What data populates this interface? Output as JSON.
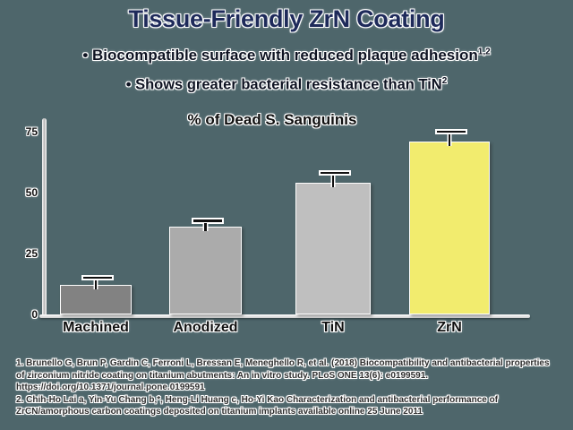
{
  "background_color": "#4e666b",
  "title": {
    "text": "Tissue-Friendly ZrN Coating",
    "color": "#1e2a5a"
  },
  "bullets": [
    {
      "marker": "•",
      "text": "Biocompatible surface with reduced plaque adhesion",
      "superscript": "1,2"
    },
    {
      "marker": "•",
      "text": "Shows greater bacterial resistance than TiN",
      "superscript": "2"
    }
  ],
  "chart_data": {
    "type": "bar",
    "title": "% of Dead S. Sanguinis",
    "categories": [
      "Machined",
      "Anodized",
      "TiN",
      "ZrN"
    ],
    "values": [
      12,
      36,
      54,
      71
    ],
    "error_values": [
      2,
      1.5,
      3,
      3
    ],
    "bar_colors": [
      "#828282",
      "#ababab",
      "#bfbfbf",
      "#f2ec6e"
    ],
    "highlight_category": "ZrN",
    "xlabel": "",
    "ylabel": "",
    "yticks": [
      0,
      25,
      50,
      75
    ],
    "ylim": [
      0,
      80
    ],
    "grid": false,
    "legend": "none"
  },
  "footnotes": [
    "1. Brunello G, Brun P, Gardin C, Ferroni L, Bressan E, Meneghello R, et al. (2018) Biocompatibility and antibacterial properties of zirconium nitride coating on titanium abutments: An in vitro study. PLoS ONE 13(6): e0199591. https://doi.org/10.1371/journal.pone.0199591",
    "2. Chih-Ho Lai a, Yin-Yu Chang b,*, Heng-Li Huang c, Ho-Yi Kao Characterization and antibacterial performance of ZrCN/amorphous carbon coatings deposited on titanium implants available online 25 June 2011"
  ]
}
